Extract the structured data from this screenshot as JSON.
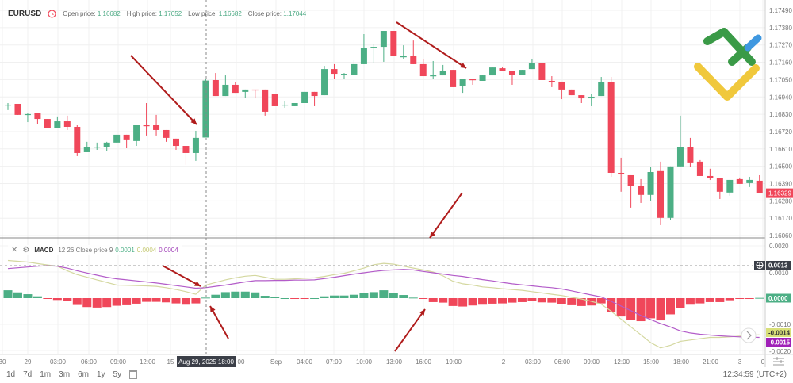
{
  "header": {
    "symbol": "EURUSD",
    "open_label": "Open price:",
    "open": "1.16682",
    "high_label": "High price:",
    "high": "1.17052",
    "low_label": "Low price:",
    "low": "1.16682",
    "close_label": "Close price:",
    "close": "1.17044"
  },
  "macd_header": {
    "name": "MACD",
    "params": "12 26 Close price 9",
    "hist_value": "0.0001",
    "macd_value": "0.0004",
    "signal_value": "0.0004"
  },
  "colors": {
    "up": "#4caf85",
    "down": "#f0475a",
    "macd_line": "#d4d8a0",
    "signal_line": "#b35cc9",
    "hist_up": "#4caf85",
    "hist_down": "#f0475a",
    "arrow": "#b01c1c",
    "current_price": "#f0475a"
  },
  "price_axis": [
    "1.17490",
    "1.17380",
    "1.17270",
    "1.17160",
    "1.17050",
    "1.16940",
    "1.16830",
    "1.16720",
    "1.16610",
    "1.16500",
    "1.16390",
    "1.16280",
    "1.16170",
    "1.16060"
  ],
  "current_price": "1.16329",
  "macd_axis": [
    "0.0020",
    "0.0010",
    "-0.0010",
    "-0.0020"
  ],
  "macd_labels": {
    "zero": "0.0000",
    "crosshair": "0.0013",
    "macd": "-0.0014",
    "signal": "-0.0015"
  },
  "time_axis": [
    "30",
    "29",
    "03:00",
    "06:00",
    "09:00",
    "12:00",
    "15",
    "00",
    "Sep",
    "04:00",
    "07:00",
    "10:00",
    "13:00",
    "16:00",
    "19:00",
    "2",
    "03:00",
    "06:00",
    "09:00",
    "12:00",
    "15:00",
    "18:00",
    "21:00",
    "3",
    "0"
  ],
  "crosshair_time": "Aug 29, 2025 18:00",
  "ranges": [
    "1d",
    "7d",
    "1m",
    "3m",
    "6m",
    "1y",
    "5y"
  ],
  "clock": "12:34:59 (UTC+2)",
  "chart_data": {
    "type": "candlestick",
    "symbol": "EURUSD",
    "interval": "1h",
    "ylim": [
      1.1606,
      1.1749
    ],
    "ohlc": [
      [
        1.16886,
        1.16901,
        1.16856,
        1.16891
      ],
      [
        1.16896,
        1.16896,
        1.16826,
        1.16826
      ],
      [
        1.16831,
        1.16836,
        1.1678,
        1.16831
      ],
      [
        1.16836,
        1.16836,
        1.1677,
        1.168
      ],
      [
        1.168,
        1.168,
        1.1674,
        1.1674
      ],
      [
        1.1674,
        1.16816,
        1.1674,
        1.16785
      ],
      [
        1.16785,
        1.16821,
        1.1673,
        1.1675
      ],
      [
        1.1675,
        1.1676,
        1.16564,
        1.16584
      ],
      [
        1.16589,
        1.16655,
        1.16589,
        1.16619
      ],
      [
        1.16624,
        1.1665,
        1.16604,
        1.16624
      ],
      [
        1.16624,
        1.16655,
        1.16594,
        1.1665
      ],
      [
        1.1665,
        1.167,
        1.1665,
        1.167
      ],
      [
        1.167,
        1.167,
        1.16614,
        1.1667
      ],
      [
        1.1666,
        1.1676,
        1.16629,
        1.1676
      ],
      [
        1.1676,
        1.16901,
        1.16695,
        1.16755
      ],
      [
        1.1676,
        1.16826,
        1.16695,
        1.1673
      ],
      [
        1.1673,
        1.1673,
        1.16655,
        1.1668
      ],
      [
        1.16675,
        1.16675,
        1.16604,
        1.16629
      ],
      [
        1.16629,
        1.16629,
        1.16509,
        1.16584
      ],
      [
        1.16584,
        1.16725,
        1.16534,
        1.1668
      ],
      [
        1.16682,
        1.17052,
        1.16682,
        1.17044
      ],
      [
        1.17047,
        1.17092,
        1.16946,
        1.16946
      ],
      [
        1.16946,
        1.17077,
        1.16946,
        1.17017
      ],
      [
        1.17017,
        1.17032,
        1.16966,
        1.16966
      ],
      [
        1.16972,
        1.16987,
        1.16936,
        1.16987
      ],
      [
        1.16987,
        1.16987,
        1.16931,
        1.16982
      ],
      [
        1.16987,
        1.16987,
        1.16821,
        1.16846
      ],
      [
        1.16961,
        1.16961,
        1.16881,
        1.16881
      ],
      [
        1.16891,
        1.16911,
        1.16871,
        1.16891
      ],
      [
        1.16881,
        1.16901,
        1.16881,
        1.16901
      ],
      [
        1.16901,
        1.16972,
        1.16901,
        1.16972
      ],
      [
        1.16972,
        1.16972,
        1.16881,
        1.16946
      ],
      [
        1.16951,
        1.17137,
        1.16951,
        1.17117
      ],
      [
        1.17117,
        1.17148,
        1.17057,
        1.17087
      ],
      [
        1.17087,
        1.17092,
        1.17057,
        1.17087
      ],
      [
        1.17082,
        1.17173,
        1.17082,
        1.17148
      ],
      [
        1.17148,
        1.17339,
        1.17148,
        1.17253
      ],
      [
        1.17258,
        1.17278,
        1.17158,
        1.17258
      ],
      [
        1.17258,
        1.17359,
        1.17163,
        1.17359
      ],
      [
        1.17359,
        1.17359,
        1.17198,
        1.17198
      ],
      [
        1.17198,
        1.17268,
        1.17183,
        1.17198
      ],
      [
        1.17198,
        1.17298,
        1.17148,
        1.17148
      ],
      [
        1.17148,
        1.17178,
        1.17072,
        1.17072
      ],
      [
        1.17077,
        1.17168,
        1.17057,
        1.17077
      ],
      [
        1.17077,
        1.17143,
        1.17077,
        1.17107
      ],
      [
        1.17112,
        1.17112,
        1.17002,
        1.17002
      ],
      [
        1.17007,
        1.17052,
        1.16966,
        1.17052
      ],
      [
        1.17052,
        1.17052,
        1.17017,
        1.17047
      ],
      [
        1.17042,
        1.17077,
        1.17042,
        1.17077
      ],
      [
        1.17077,
        1.17127,
        1.17077,
        1.17127
      ],
      [
        1.17122,
        1.17127,
        1.17107,
        1.17107
      ],
      [
        1.17107,
        1.17107,
        1.17017,
        1.17082
      ],
      [
        1.17082,
        1.17112,
        1.17082,
        1.17112
      ],
      [
        1.17117,
        1.17183,
        1.17117,
        1.17153
      ],
      [
        1.17153,
        1.17153,
        1.17047,
        1.17047
      ],
      [
        1.17042,
        1.17072,
        1.17002,
        1.17037
      ],
      [
        1.17037,
        1.17037,
        1.16926,
        1.16987
      ],
      [
        1.16987,
        1.16987,
        1.16951,
        1.16951
      ],
      [
        1.16951,
        1.16951,
        1.16901,
        1.16931
      ],
      [
        1.16931,
        1.16961,
        1.16881,
        1.16941
      ],
      [
        1.16946,
        1.17067,
        1.16946,
        1.17032
      ],
      [
        1.17032,
        1.17067,
        1.16433,
        1.16458
      ],
      [
        1.16458,
        1.16554,
        1.16338,
        1.16448
      ],
      [
        1.16443,
        1.16443,
        1.16237,
        1.16373
      ],
      [
        1.16373,
        1.16418,
        1.16267,
        1.16318
      ],
      [
        1.16318,
        1.16494,
        1.16282,
        1.16463
      ],
      [
        1.16469,
        1.16529,
        1.16126,
        1.16172
      ],
      [
        1.16172,
        1.16499,
        1.16157,
        1.16499
      ],
      [
        1.16499,
        1.16821,
        1.16499,
        1.16624
      ],
      [
        1.16624,
        1.1668,
        1.16494,
        1.16524
      ],
      [
        1.16529,
        1.16539,
        1.16438,
        1.16438
      ],
      [
        1.16438,
        1.16484,
        1.16413,
        1.16423
      ],
      [
        1.16423,
        1.16423,
        1.16292,
        1.16338
      ],
      [
        1.16333,
        1.16413,
        1.16313,
        1.16413
      ],
      [
        1.16418,
        1.16428,
        1.16388,
        1.16388
      ],
      [
        1.16393,
        1.16433,
        1.16368,
        1.16413
      ],
      [
        1.16408,
        1.16443,
        1.16329,
        1.16329
      ]
    ],
    "macd": {
      "ylim": [
        -0.002,
        0.002
      ],
      "histogram": [
        0.0003,
        0.00022,
        0.00015,
        7e-05,
        -1e-05,
        -7e-05,
        -0.00012,
        -0.00026,
        -0.00034,
        -0.00036,
        -0.00034,
        -0.00029,
        -0.00027,
        -0.00021,
        -0.00014,
        -0.00014,
        -0.00016,
        -0.0002,
        -0.00025,
        -0.0002,
        2e-05,
        0.00013,
        0.00023,
        0.00025,
        0.00025,
        0.00022,
        9e-05,
        4e-05,
        0.0,
        -2e-05,
        -2e-05,
        0.0,
        7e-05,
        0.0001,
        0.0001,
        0.00013,
        0.0002,
        0.00023,
        0.0003,
        0.0002,
        0.00012,
        2e-05,
        -3e-05,
        -0.00015,
        -0.00017,
        -0.0003,
        -0.00032,
        -0.00028,
        -0.00025,
        -0.00021,
        -0.0002,
        -0.00017,
        -0.00015,
        -0.00011,
        -0.00016,
        -0.00017,
        -0.00023,
        -0.00027,
        -0.0003,
        -0.00028,
        -0.0002,
        -0.00052,
        -0.0007,
        -0.00083,
        -0.00088,
        -0.00077,
        -0.00085,
        -0.00062,
        -0.00037,
        -0.00025,
        -0.0002,
        -0.00015,
        -0.00015,
        -8e-05,
        -3e-05,
        -1e-05,
        1e-05
      ],
      "macd_line": [
        0.00144,
        0.00141,
        0.00138,
        0.00132,
        0.00127,
        0.00122,
        0.00105,
        0.0009,
        0.0008,
        0.0007,
        0.0006,
        0.0005,
        0.00049,
        0.00048,
        0.00047,
        0.00045,
        0.0004,
        0.00033,
        0.00025,
        0.00015,
        0.0005,
        0.0006,
        0.0007,
        0.00078,
        0.00084,
        0.00087,
        0.0008,
        0.00072,
        0.00072,
        0.00074,
        0.00076,
        0.00078,
        0.00083,
        0.0009,
        0.00095,
        0.00105,
        0.00115,
        0.00128,
        0.00133,
        0.0013,
        0.00122,
        0.00115,
        0.00108,
        0.001,
        0.00085,
        0.00065,
        0.00055,
        0.0005,
        0.00043,
        0.0004,
        0.00036,
        0.00033,
        0.0003,
        0.00025,
        0.0002,
        0.00015,
        0.0001,
        3e-05,
        -3e-05,
        -0.00012,
        -0.00023,
        -0.0005,
        -0.0008,
        -0.0011,
        -0.0014,
        -0.0017,
        -0.0019,
        -0.0018,
        -0.00165,
        -0.0016,
        -0.00155,
        -0.0015,
        -0.0015,
        -0.00148,
        -0.00145,
        -0.00142,
        -0.0014
      ],
      "signal_line": [
        0.00113,
        0.00116,
        0.00119,
        0.00122,
        0.00124,
        0.00122,
        0.00115,
        0.00105,
        0.00096,
        0.00088,
        0.0008,
        0.00074,
        0.0007,
        0.00066,
        0.00062,
        0.00058,
        0.00053,
        0.00048,
        0.00043,
        0.00038,
        0.0004,
        0.00045,
        0.0005,
        0.00056,
        0.00062,
        0.00067,
        0.00067,
        0.00068,
        0.00068,
        0.00069,
        0.00069,
        0.0007,
        0.00075,
        0.0008,
        0.00086,
        0.00092,
        0.00097,
        0.00102,
        0.00106,
        0.00108,
        0.0011,
        0.00108,
        0.00102,
        0.00097,
        0.00092,
        0.00087,
        0.00083,
        0.00077,
        0.00071,
        0.00066,
        0.0006,
        0.00055,
        0.00051,
        0.00047,
        0.00043,
        0.0004,
        0.00035,
        0.00028,
        0.0002,
        0.00012,
        5e-05,
        -0.00012,
        -0.0003,
        -0.00048,
        -0.00066,
        -0.00082,
        -0.00097,
        -0.0011,
        -0.00125,
        -0.00133,
        -0.00138,
        -0.00141,
        -0.00144,
        -0.00146,
        -0.00148,
        -0.00149,
        -0.0015
      ]
    }
  }
}
